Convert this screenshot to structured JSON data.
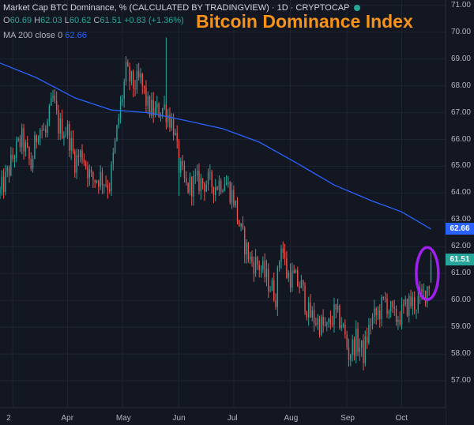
{
  "header": {
    "symbol_line": "Market Cap BTC Dominance, % (CALCULATED BY TRADINGVIEW) · 1D · CRYPTOCAP",
    "ohlc": {
      "o_label": "O",
      "o": "60.69",
      "h_label": "H",
      "h": "62.03",
      "l_label": "L",
      "l": "60.62",
      "c_label": "C",
      "c": "61.51",
      "change": "+0.83 (+1.36%)"
    },
    "ma_line": {
      "label": "MA 200 close 0",
      "value": "62.66"
    },
    "status_dot_color": "#26a69a"
  },
  "overlay_title": "Bitcoin Dominance Index",
  "colors": {
    "up": "#26a69a",
    "down": "#ef5350",
    "ma": "#2962ff",
    "highlight": "#a020f0",
    "bg": "#131722",
    "grid": "#1f2433"
  },
  "chart_data": {
    "type": "candlestick",
    "title": "Market Cap BTC Dominance, % (CALCULATED BY TRADINGVIEW)",
    "ylim": [
      56,
      71.2
    ],
    "yticks": [
      "57.00",
      "58.00",
      "59.00",
      "60.00",
      "61.00",
      "62.00",
      "63.00",
      "64.00",
      "65.00",
      "66.00",
      "67.00",
      "68.00",
      "69.00",
      "70.00",
      "71.00"
    ],
    "xticks": [
      {
        "label": "2",
        "date": "2020-03-02"
      },
      {
        "label": "Apr",
        "date": "2020-04-01"
      },
      {
        "label": "May",
        "date": "2020-05-01"
      },
      {
        "label": "Jun",
        "date": "2020-06-01"
      },
      {
        "label": "Jul",
        "date": "2020-07-01"
      },
      {
        "label": "Aug",
        "date": "2020-08-01"
      },
      {
        "label": "Sep",
        "date": "2020-09-01"
      },
      {
        "label": "Oct",
        "date": "2020-10-01"
      }
    ],
    "x_range": [
      "2020-02-24",
      "2020-10-25"
    ],
    "close_path": [
      [
        "2020-02-24",
        64.0
      ],
      [
        "2020-02-27",
        64.5
      ],
      [
        "2020-03-03",
        65.5
      ],
      [
        "2020-03-07",
        66.0
      ],
      [
        "2020-03-12",
        65.0
      ],
      [
        "2020-03-16",
        66.5
      ],
      [
        "2020-03-20",
        66.2
      ],
      [
        "2020-03-24",
        67.5
      ],
      [
        "2020-03-27",
        66.5
      ],
      [
        "2020-04-01",
        66.3
      ],
      [
        "2020-04-05",
        65.2
      ],
      [
        "2020-04-09",
        65.5
      ],
      [
        "2020-04-14",
        64.5
      ],
      [
        "2020-04-19",
        64.6
      ],
      [
        "2020-04-24",
        64.3
      ],
      [
        "2020-04-29",
        66.8
      ],
      [
        "2020-05-03",
        68.5
      ],
      [
        "2020-05-07",
        68.0
      ],
      [
        "2020-05-11",
        68.2
      ],
      [
        "2020-05-15",
        67.2
      ],
      [
        "2020-05-19",
        67.0
      ],
      [
        "2020-05-24",
        67.2
      ],
      [
        "2020-05-29",
        66.5
      ],
      [
        "2020-06-01",
        65.0
      ],
      [
        "2020-06-05",
        64.2
      ],
      [
        "2020-06-10",
        64.4
      ],
      [
        "2020-06-16",
        64.4
      ],
      [
        "2020-06-21",
        64.3
      ],
      [
        "2020-06-26",
        64.5
      ],
      [
        "2020-07-01",
        63.8
      ],
      [
        "2020-07-05",
        62.5
      ],
      [
        "2020-07-10",
        61.5
      ],
      [
        "2020-07-15",
        61.3
      ],
      [
        "2020-07-19",
        60.8
      ],
      [
        "2020-07-24",
        60.2
      ],
      [
        "2020-07-27",
        62.2
      ],
      [
        "2020-07-30",
        61.0
      ],
      [
        "2020-08-03",
        60.8
      ],
      [
        "2020-08-07",
        60.5
      ],
      [
        "2020-08-11",
        59.5
      ],
      [
        "2020-08-16",
        59.2
      ],
      [
        "2020-08-21",
        58.9
      ],
      [
        "2020-08-25",
        59.5
      ],
      [
        "2020-08-29",
        59.2
      ],
      [
        "2020-09-02",
        58.0
      ],
      [
        "2020-09-06",
        58.5
      ],
      [
        "2020-09-10",
        58.0
      ],
      [
        "2020-09-14",
        59.2
      ],
      [
        "2020-09-18",
        59.5
      ],
      [
        "2020-09-22",
        60.0
      ],
      [
        "2020-09-27",
        59.3
      ],
      [
        "2020-10-01",
        59.5
      ],
      [
        "2020-10-05",
        59.9
      ],
      [
        "2020-10-09",
        59.9
      ],
      [
        "2020-10-13",
        60.2
      ],
      [
        "2020-10-16",
        60.69
      ],
      [
        "2020-10-17",
        61.51
      ]
    ],
    "spikes": [
      {
        "date": "2020-05-25",
        "low": 67.3,
        "high": 69.8
      },
      {
        "date": "2020-06-01",
        "low": 63.9,
        "high": 65.3
      }
    ],
    "ma200": {
      "name": "MA 200 close 0",
      "points": [
        [
          "2020-02-24",
          68.85
        ],
        [
          "2020-03-15",
          68.3
        ],
        [
          "2020-04-05",
          67.55
        ],
        [
          "2020-04-25",
          67.1
        ],
        [
          "2020-05-15",
          67.0
        ],
        [
          "2020-06-05",
          66.7
        ],
        [
          "2020-06-25",
          66.4
        ],
        [
          "2020-07-15",
          65.9
        ],
        [
          "2020-08-05",
          65.1
        ],
        [
          "2020-08-25",
          64.3
        ],
        [
          "2020-09-15",
          63.7
        ],
        [
          "2020-10-01",
          63.3
        ],
        [
          "2020-10-17",
          62.66
        ]
      ]
    },
    "last_values": {
      "ma": "62.66",
      "close": "61.51"
    },
    "annotation": {
      "type": "ellipse",
      "center": [
        "2020-10-15",
        61.0
      ],
      "note": ""
    }
  }
}
